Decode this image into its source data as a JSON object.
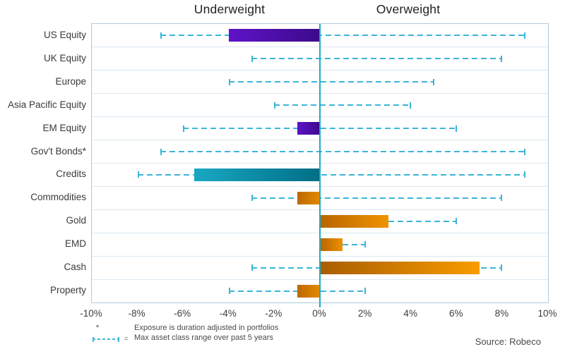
{
  "headers": {
    "underweight": "Underweight",
    "overweight": "Overweight"
  },
  "source": "Source: Robeco",
  "footnotes": {
    "star_symbol": "*",
    "line1": "Exposure is duration adjusted in portfolios",
    "equals": "=",
    "line2": "Max asset class range over past 5 years"
  },
  "colors": {
    "whisker": "#3bb5d7",
    "zero_line": "#1ea9c8",
    "plot_border": "#aecadd",
    "row_separator": "#dbe8f2",
    "header_text": "#1f1f1f",
    "label_text": "#3a3a3a",
    "footnote_text": "#4a4a4a"
  },
  "chart_data": {
    "type": "bar",
    "orientation": "horizontal",
    "title_left": "Underweight",
    "title_right": "Overweight",
    "xlim": [
      -10,
      10
    ],
    "x_tick_values": [
      -10,
      -8,
      -6,
      -4,
      -2,
      0,
      2,
      4,
      6,
      8,
      10
    ],
    "x_tick_labels": [
      "-10%",
      "-8%",
      "-6%",
      "-4%",
      "-2%",
      "0%",
      "2%",
      "4%",
      "6%",
      "8%",
      "10%"
    ],
    "grid": "row-separators",
    "legend": "Dashed whisker = Max asset class range over past 5 years",
    "categories": [
      "US Equity",
      "UK Equity",
      "Europe",
      "Asia Pacific Equity",
      "EM Equity",
      "Gov't Bonds*",
      "Credits",
      "Commodities",
      "Gold",
      "EMD",
      "Cash",
      "Property"
    ],
    "rows": [
      {
        "label": "US Equity",
        "value": -4,
        "range": [
          -7,
          9
        ],
        "color_from": "#5f13c8",
        "color_to": "#3b0a8a",
        "left_cap": true,
        "right_cap": true
      },
      {
        "label": "UK Equity",
        "value": 0,
        "range": [
          -3,
          8
        ],
        "color_from": null,
        "color_to": null,
        "left_cap": true,
        "right_cap": true
      },
      {
        "label": "Europe",
        "value": 0,
        "range": [
          -4,
          5
        ],
        "color_from": null,
        "color_to": null,
        "left_cap": true,
        "right_cap": true
      },
      {
        "label": "Asia Pacific Equity",
        "value": 0,
        "range": [
          -2,
          4
        ],
        "color_from": null,
        "color_to": null,
        "left_cap": true,
        "right_cap": true
      },
      {
        "label": "EM Equity",
        "value": -1,
        "range": [
          -6,
          6
        ],
        "color_from": "#5f13c8",
        "color_to": "#3b0a8a",
        "left_cap": true,
        "right_cap": true
      },
      {
        "label": "Gov't Bonds*",
        "value": 0,
        "range": [
          -7,
          9
        ],
        "color_from": null,
        "color_to": null,
        "left_cap": true,
        "right_cap": true
      },
      {
        "label": "Credits",
        "value": -5.5,
        "range": [
          -8,
          9
        ],
        "color_from": "#1aa7c3",
        "color_to": "#006e86",
        "left_cap": true,
        "right_cap": true
      },
      {
        "label": "Commodities",
        "value": -1,
        "range": [
          -3,
          8
        ],
        "color_from": "#bd6800",
        "color_to": "#e18a00",
        "left_cap": true,
        "right_cap": true
      },
      {
        "label": "Gold",
        "value": 3,
        "range": [
          3,
          6
        ],
        "color_from": "#b76500",
        "color_to": "#f09300",
        "left_cap": false,
        "right_cap": true
      },
      {
        "label": "EMD",
        "value": 1,
        "range": [
          1,
          2
        ],
        "color_from": "#b76500",
        "color_to": "#ed9000",
        "left_cap": false,
        "right_cap": true
      },
      {
        "label": "Cash",
        "value": 7,
        "range": [
          -3,
          8
        ],
        "color_from": "#a85d00",
        "color_to": "#f89c00",
        "left_cap": true,
        "right_cap": true
      },
      {
        "label": "Property",
        "value": -1,
        "range": [
          -4,
          2
        ],
        "color_from": "#bd6800",
        "color_to": "#e18a00",
        "left_cap": true,
        "right_cap": true
      }
    ]
  }
}
